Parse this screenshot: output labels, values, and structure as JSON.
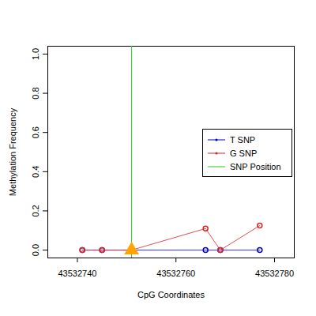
{
  "chart_data": {
    "type": "line",
    "x_label": "CpG Coordinates",
    "y_label": "Methylation Frequency",
    "xlim": [
      43532734,
      43532784
    ],
    "xticks": [
      43532740,
      43532760,
      43532780
    ],
    "ylim": [
      -0.04,
      1.04
    ],
    "yticks": [
      {
        "value": 0,
        "label": "0.0"
      },
      {
        "value": 0.2,
        "label": "0.2"
      },
      {
        "value": 0.4,
        "label": "0.4"
      },
      {
        "value": 0.6,
        "label": "0.6"
      },
      {
        "value": 0.8,
        "label": "0.8"
      },
      {
        "value": 1,
        "label": "1.0"
      }
    ],
    "legend": "right",
    "marker": "circle",
    "x": [
      43532741,
      43532745,
      43532751,
      43532766,
      43532769,
      43532777
    ],
    "series": [
      {
        "name": "T SNP",
        "color": "#0000cc",
        "values": [
          0,
          0,
          0,
          0,
          0,
          0
        ]
      },
      {
        "name": "G SNP",
        "color": "#dd2222",
        "values": [
          0,
          0,
          0,
          0.11,
          0,
          0.125
        ]
      }
    ],
    "snp": {
      "name": "SNP Position",
      "color": "#22cc22",
      "x": 43532751,
      "marker": "triangle"
    }
  }
}
